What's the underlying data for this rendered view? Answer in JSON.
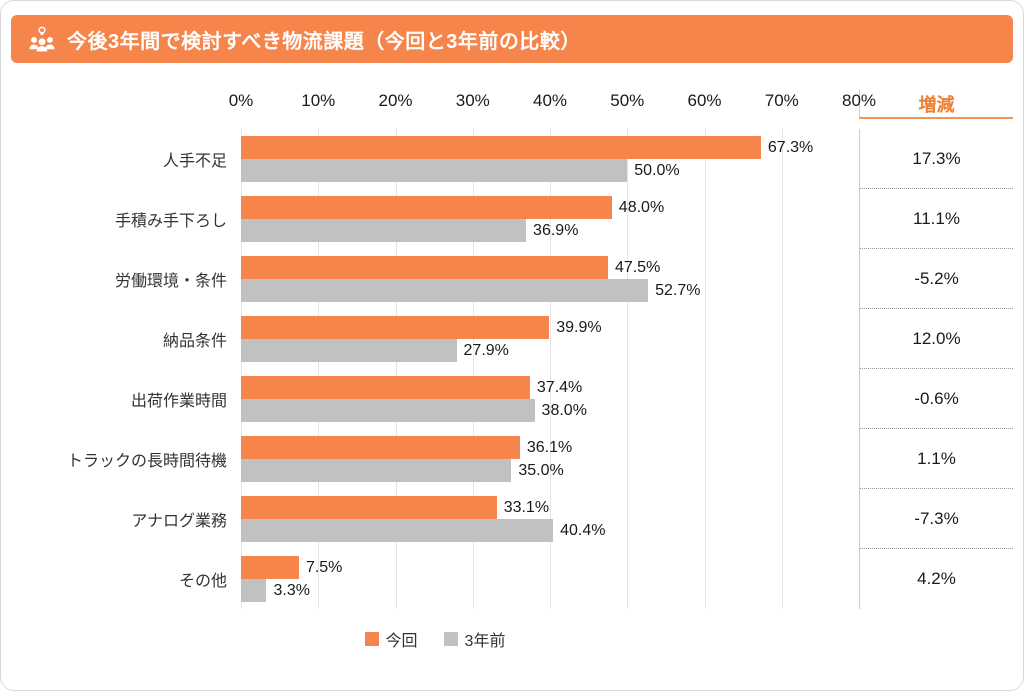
{
  "header": {
    "title": "今後3年間で検討すべき物流課題（今回と3年前の比較）",
    "bg_color": "#F5854A",
    "icon": "people-idea-icon"
  },
  "chart_data": {
    "type": "bar",
    "orientation": "horizontal",
    "title": "今後3年間で検討すべき物流課題（今回と3年前の比較）",
    "categories": [
      "人手不足",
      "手積み手下ろし",
      "労働環境・条件",
      "納品条件",
      "出荷作業時間",
      "トラックの長時間待機",
      "アナログ業務",
      "その他"
    ],
    "series": [
      {
        "name": "今回",
        "color": "#F5854A",
        "values": [
          67.3,
          48.0,
          47.5,
          39.9,
          37.4,
          36.1,
          33.1,
          7.5
        ]
      },
      {
        "name": "3年前",
        "color": "#C1C1C1",
        "values": [
          50.0,
          36.9,
          52.7,
          27.9,
          38.0,
          35.0,
          40.4,
          3.3
        ]
      }
    ],
    "change_header": "増減",
    "changes": [
      17.3,
      11.1,
      -5.2,
      12.0,
      -0.6,
      1.1,
      -7.3,
      4.2
    ],
    "xlim": [
      0,
      80
    ],
    "x_ticks": [
      "0%",
      "10%",
      "20%",
      "30%",
      "40%",
      "50%",
      "60%",
      "70%",
      "80%"
    ],
    "grid": true,
    "legend_position": "bottom"
  }
}
